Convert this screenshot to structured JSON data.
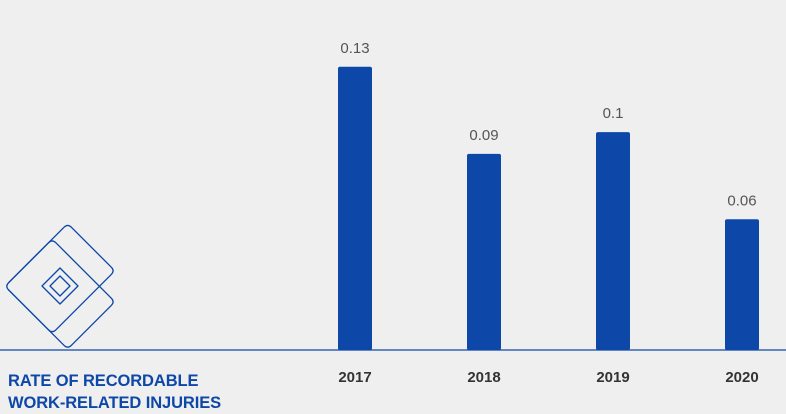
{
  "colors": {
    "background": "#efefef",
    "bar": "#0d47a8",
    "axis": "#0d47a8",
    "title": "#0d47a8",
    "icon_stroke": "#0d47a8",
    "value_text": "#555555",
    "tick_text": "#333333"
  },
  "icon": "bandage-icon",
  "chart_data": {
    "type": "bar",
    "title_lines": [
      "RATE OF RECORDABLE",
      "WORK-RELATED INJURIES"
    ],
    "categories": [
      "2017",
      "2018",
      "2019",
      "2020"
    ],
    "values": [
      0.13,
      0.09,
      0.1,
      0.06
    ],
    "value_labels": [
      "0.13",
      "0.09",
      "0.1",
      "0.06"
    ],
    "ylim": [
      0,
      0.1423
    ],
    "xlabel": "",
    "ylabel": "",
    "grid": false,
    "legend": "none"
  }
}
